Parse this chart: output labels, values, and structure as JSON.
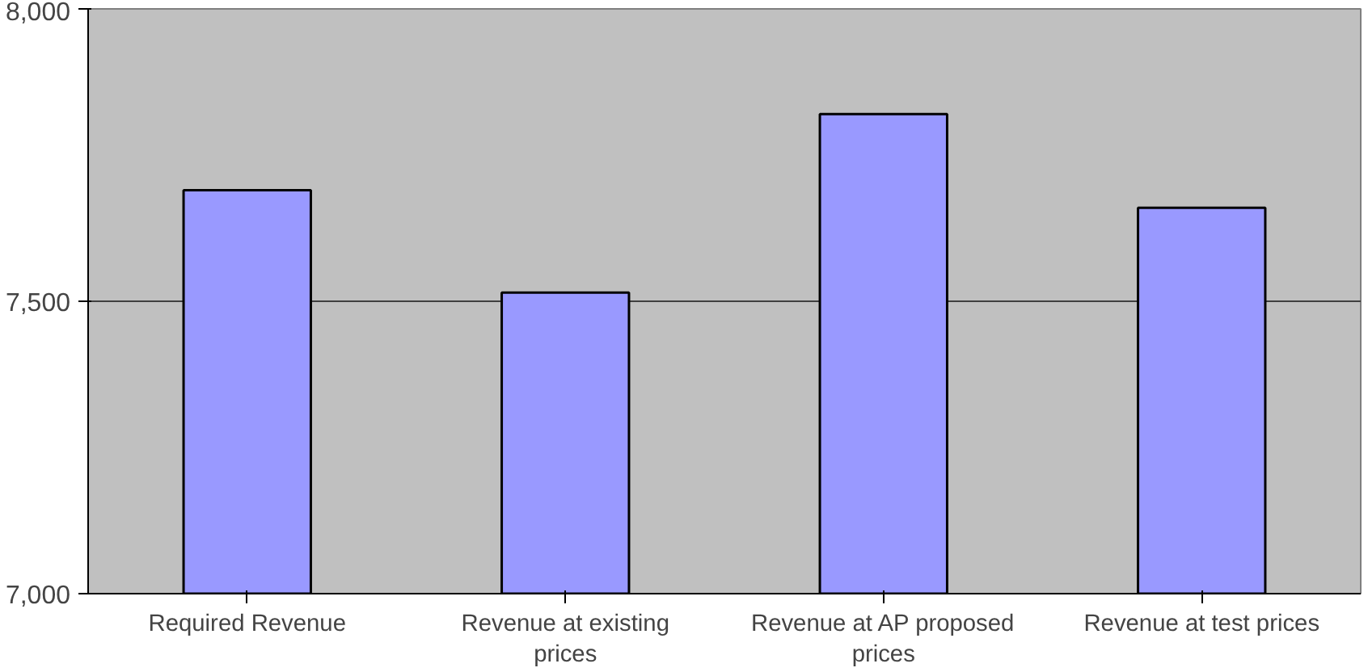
{
  "chart_data": {
    "type": "bar",
    "categories": [
      "Required Revenue",
      "Revenue at existing prices",
      "Revenue at AP proposed prices",
      "Revenue at test prices"
    ],
    "values": [
      7690,
      7515,
      7820,
      7660
    ],
    "color": "#9999ff",
    "ylim": [
      7000,
      8000
    ],
    "yticks": [
      {
        "value": 7000,
        "label": "7,000"
      },
      {
        "value": 7500,
        "label": "7,500"
      },
      {
        "value": 8000,
        "label": "8,000"
      }
    ],
    "grid": "y"
  }
}
